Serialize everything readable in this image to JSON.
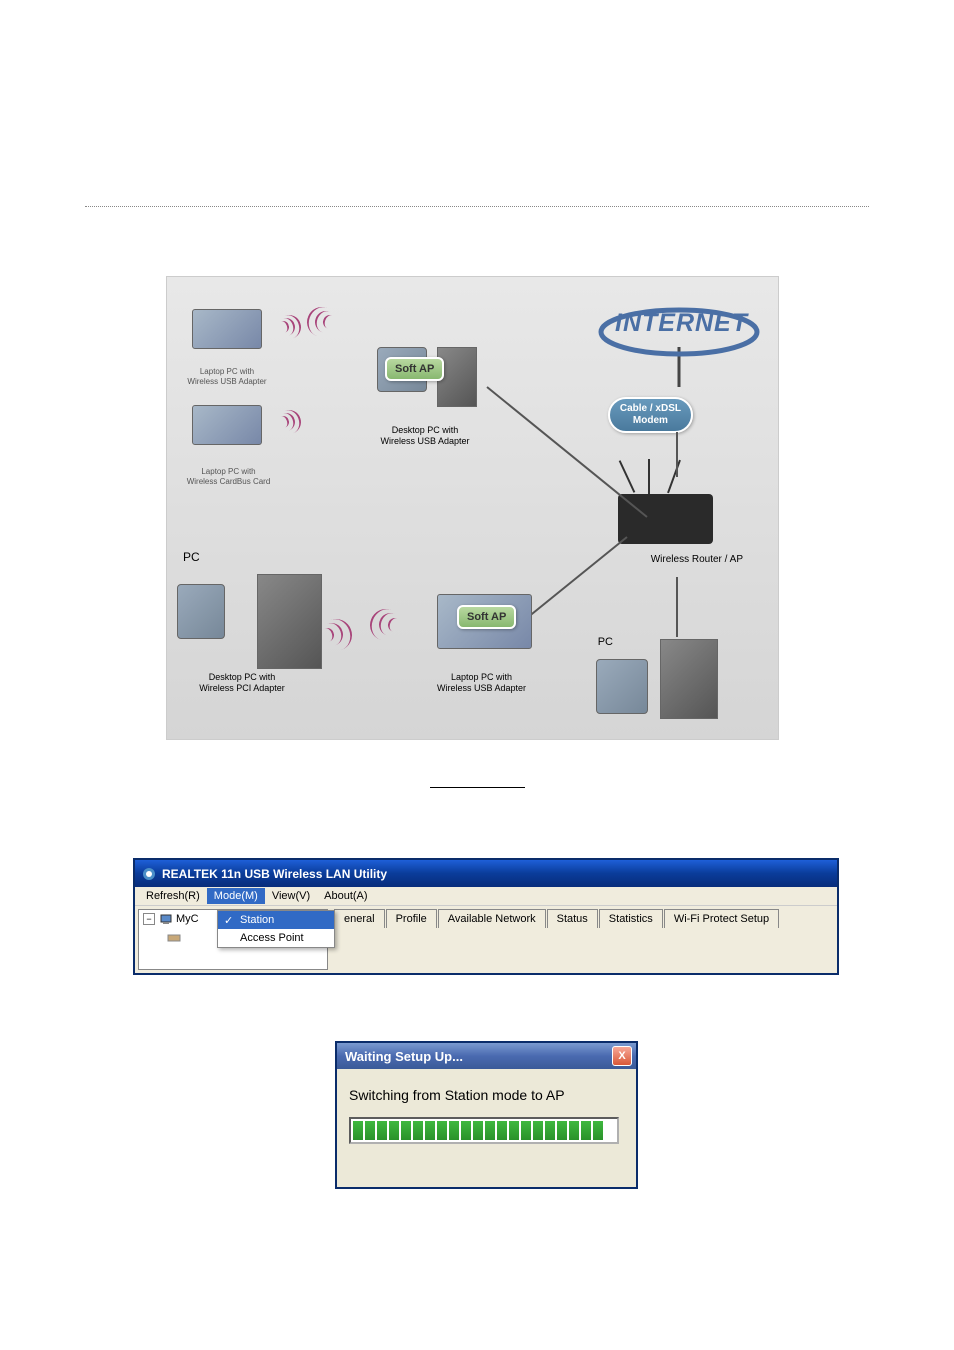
{
  "diagram": {
    "labels": {
      "internet": "INTERNET",
      "modem": "Cable / xDSL\nModem",
      "router": "Wireless Router / AP",
      "laptop_usb": "Laptop PC with\nWireless USB Adapter",
      "laptop_cardbus": "Laptop PC with\nWireless CardBus Card",
      "desktop_usb1": "Desktop PC with\nWireless USB Adapter",
      "desktop_pci": "Desktop PC with\nWireless PCI Adapter",
      "laptop_usb2": "Laptop PC with\nWireless USB Adapter",
      "softap": "Soft AP",
      "softap2": "Soft AP",
      "pc1": "PC",
      "pc2": "PC"
    },
    "colors": {
      "background_top": "#e8e8e8",
      "background_bottom": "#d5d5d5",
      "internet_text": "#4a6fa5",
      "wave_color": "#a8447a",
      "modem_bg": "#689abd",
      "softap_bg": "#a8c890"
    }
  },
  "realtek": {
    "title": "REALTEK 11n USB Wireless LAN Utility",
    "menu": {
      "refresh": "Refresh(R)",
      "mode": "Mode(M)",
      "view": "View(V)",
      "about": "About(A)"
    },
    "tree": {
      "item": "MyC"
    },
    "dropdown": {
      "station": "Station",
      "ap": "Access Point"
    },
    "tabs": {
      "general": "eneral",
      "profile": "Profile",
      "available": "Available Network",
      "status": "Status",
      "statistics": "Statistics",
      "wifi_protect": "Wi-Fi Protect Setup"
    },
    "colors": {
      "titlebar": "#0a3c9a",
      "highlight": "#316ac5",
      "menubar": "#f0ecdd"
    }
  },
  "dialog": {
    "title": "Waiting Setup Up...",
    "message": "Switching from Station mode to AP",
    "close_label": "X",
    "progress_blocks": 21,
    "colors": {
      "titlebar": "#4a6ab0",
      "close_bg": "#d85838",
      "progress_fill": "#2a922a"
    }
  }
}
